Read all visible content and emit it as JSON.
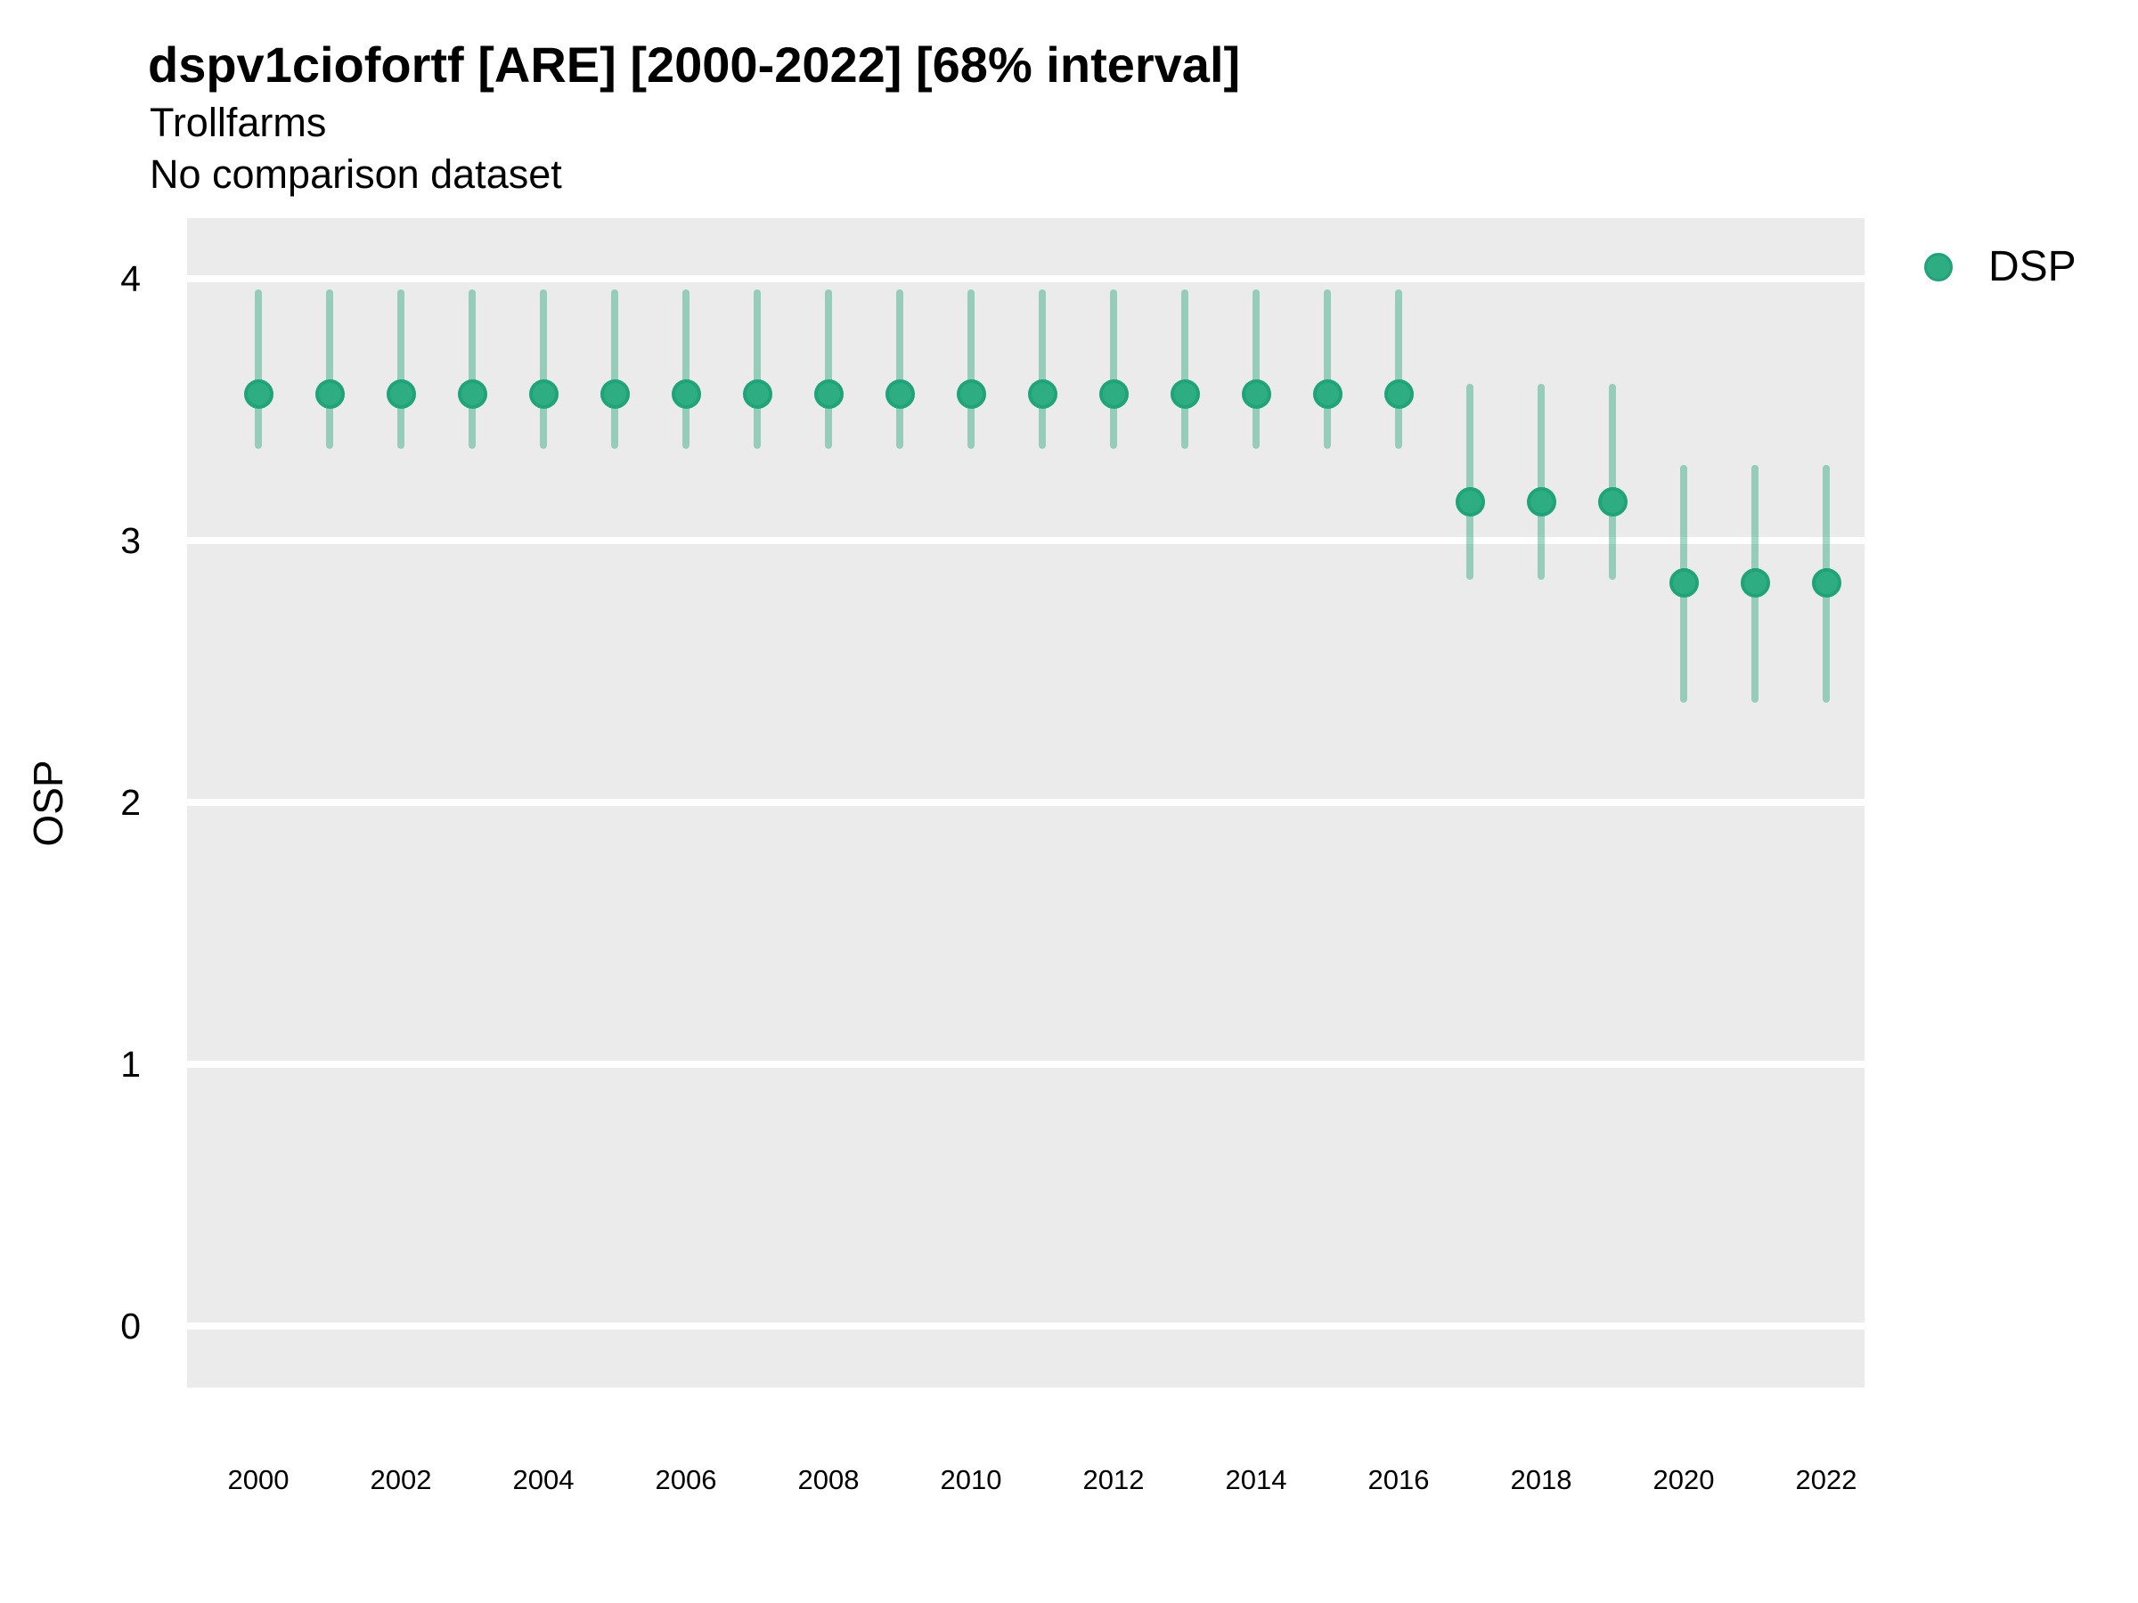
{
  "title": "dspv1ciofortf [ARE] [2000-2022] [68% interval]",
  "subtitle_line1": "Trollfarms",
  "subtitle_line2": "No comparison dataset",
  "y_axis_title": "OSP",
  "legend": {
    "label": "DSP"
  },
  "colors": {
    "panel_background": "#ebebeb",
    "gridline": "#ffffff",
    "point_fill": "#2ead82",
    "point_stroke": "#1ea478",
    "interval_line": "rgba(31,163,119,0.42)",
    "text": "#000000"
  },
  "chart_data": {
    "type": "pointrange-scatter",
    "title": "dspv1ciofortf [ARE] [2000-2022] [68% interval]",
    "subtitle": [
      "Trollfarms",
      "No comparison dataset"
    ],
    "xlabel": "",
    "ylabel": "OSP",
    "interval_level": "68%",
    "grid": "horizontal-major-only",
    "legend_position": "right-top",
    "ylim": [
      -0.234,
      4.232
    ],
    "xlim": [
      1999.0,
      2022.54
    ],
    "y_ticks": [
      0,
      1,
      2,
      3,
      4
    ],
    "x_ticks": [
      2000,
      2002,
      2004,
      2006,
      2008,
      2010,
      2012,
      2014,
      2016,
      2018,
      2020,
      2022
    ],
    "series": [
      {
        "name": "DSP",
        "points": [
          {
            "year": 2000,
            "est": 3.56,
            "lo": 3.35,
            "hi": 3.96
          },
          {
            "year": 2001,
            "est": 3.56,
            "lo": 3.35,
            "hi": 3.96
          },
          {
            "year": 2002,
            "est": 3.56,
            "lo": 3.35,
            "hi": 3.96
          },
          {
            "year": 2003,
            "est": 3.56,
            "lo": 3.35,
            "hi": 3.96
          },
          {
            "year": 2004,
            "est": 3.56,
            "lo": 3.35,
            "hi": 3.96
          },
          {
            "year": 2005,
            "est": 3.56,
            "lo": 3.35,
            "hi": 3.96
          },
          {
            "year": 2006,
            "est": 3.56,
            "lo": 3.35,
            "hi": 3.96
          },
          {
            "year": 2007,
            "est": 3.56,
            "lo": 3.35,
            "hi": 3.96
          },
          {
            "year": 2008,
            "est": 3.56,
            "lo": 3.35,
            "hi": 3.96
          },
          {
            "year": 2009,
            "est": 3.56,
            "lo": 3.35,
            "hi": 3.96
          },
          {
            "year": 2010,
            "est": 3.56,
            "lo": 3.35,
            "hi": 3.96
          },
          {
            "year": 2011,
            "est": 3.56,
            "lo": 3.35,
            "hi": 3.96
          },
          {
            "year": 2012,
            "est": 3.56,
            "lo": 3.35,
            "hi": 3.96
          },
          {
            "year": 2013,
            "est": 3.56,
            "lo": 3.35,
            "hi": 3.96
          },
          {
            "year": 2014,
            "est": 3.56,
            "lo": 3.35,
            "hi": 3.96
          },
          {
            "year": 2015,
            "est": 3.56,
            "lo": 3.35,
            "hi": 3.96
          },
          {
            "year": 2016,
            "est": 3.56,
            "lo": 3.35,
            "hi": 3.96
          },
          {
            "year": 2017,
            "est": 3.15,
            "lo": 2.85,
            "hi": 3.6
          },
          {
            "year": 2018,
            "est": 3.15,
            "lo": 2.85,
            "hi": 3.6
          },
          {
            "year": 2019,
            "est": 3.15,
            "lo": 2.85,
            "hi": 3.6
          },
          {
            "year": 2020,
            "est": 2.84,
            "lo": 2.38,
            "hi": 3.29
          },
          {
            "year": 2021,
            "est": 2.84,
            "lo": 2.38,
            "hi": 3.29
          },
          {
            "year": 2022,
            "est": 2.84,
            "lo": 2.38,
            "hi": 3.29
          }
        ]
      }
    ]
  }
}
